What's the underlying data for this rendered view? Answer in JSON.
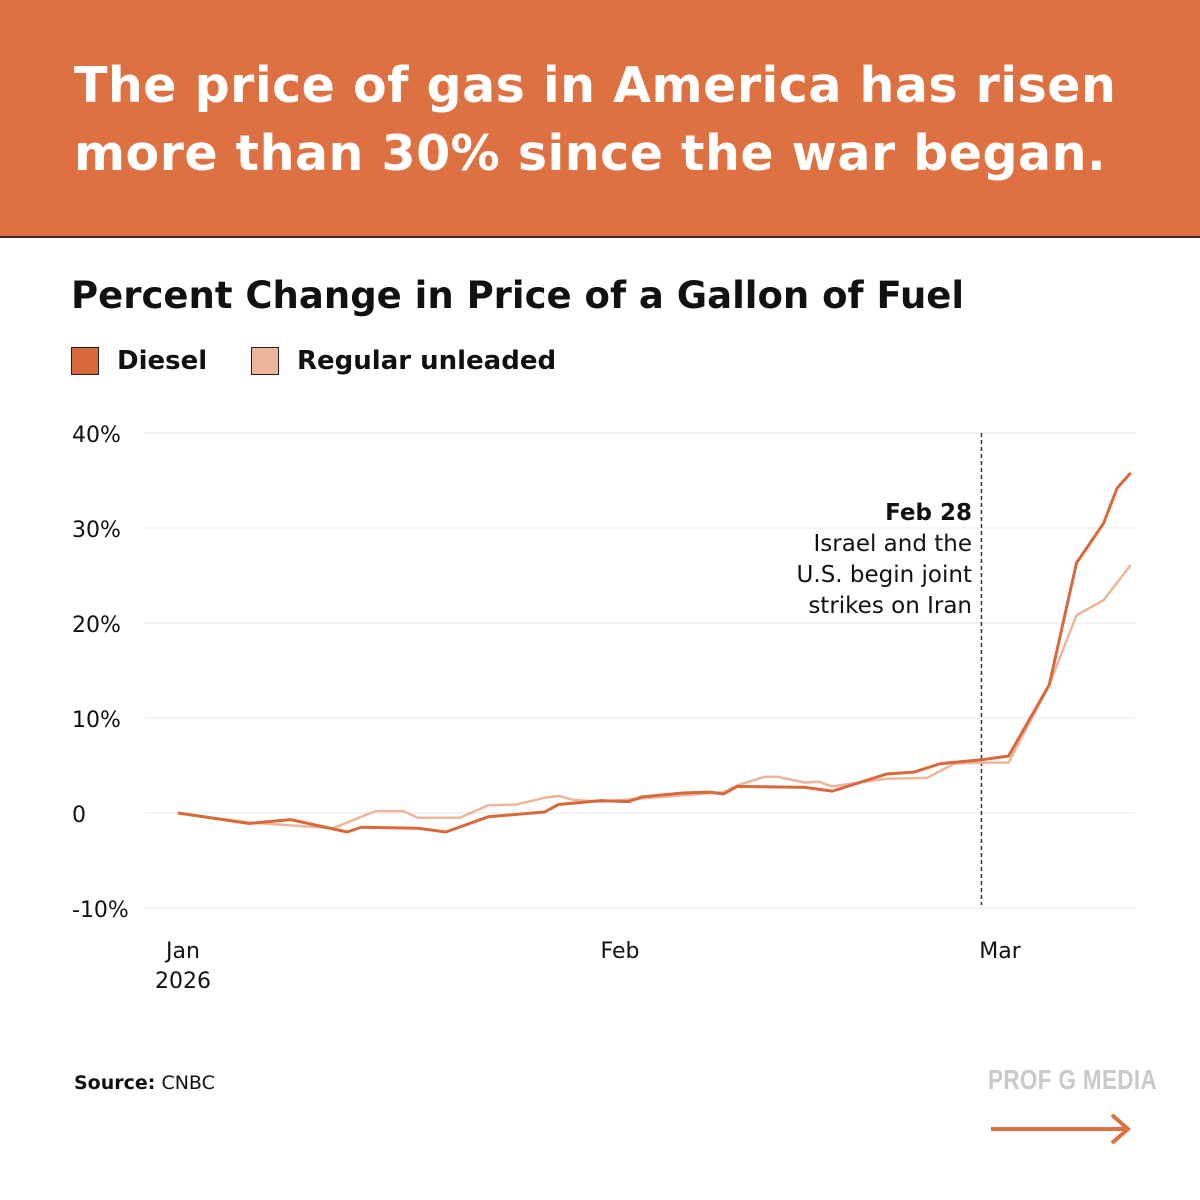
{
  "headline": "The price of gas in America has risen more than 30% since the war began.",
  "colors": {
    "header": "#DE7142",
    "diesel": "#D9683A",
    "regular": "#EDB59A",
    "grid": "#eeeeee"
  },
  "source": {
    "label": "Source:",
    "value": "CNBC"
  },
  "brand": "PROF G MEDIA",
  "brand_icon": "arrow-right-icon",
  "chart_data": {
    "type": "line",
    "title": "Percent Change in Price of a Gallon of Fuel",
    "xlabel": "",
    "ylabel": "",
    "ylim": [
      -10,
      40
    ],
    "yticks": [
      {
        "value": 40,
        "label": "40%"
      },
      {
        "value": 30,
        "label": "30%"
      },
      {
        "value": 20,
        "label": "20%"
      },
      {
        "value": 10,
        "label": "10%"
      },
      {
        "value": 0,
        "label": "0"
      },
      {
        "value": -10,
        "label": "-10%"
      }
    ],
    "xticks": [
      {
        "date": "2026-01-01",
        "label": "Jan",
        "sublabel": "2026"
      },
      {
        "date": "2026-02-01",
        "label": "Feb",
        "sublabel": ""
      },
      {
        "date": "2026-03-01",
        "label": "Mar",
        "sublabel": ""
      }
    ],
    "grid": true,
    "legend": "top-left",
    "annotation": {
      "date": "2026-02-28",
      "title": "Feb 28",
      "lines": [
        "Israel and the",
        "U.S. begin joint",
        "strikes on Iran"
      ]
    },
    "series": [
      {
        "name": "Diesel",
        "color": "#D9683A",
        "points": [
          [
            "2026-01-01",
            0.0
          ],
          [
            "2026-01-06",
            -1.1
          ],
          [
            "2026-01-09",
            -0.7
          ],
          [
            "2026-01-13",
            -2.0
          ],
          [
            "2026-01-14",
            -1.5
          ],
          [
            "2026-01-18",
            -1.6
          ],
          [
            "2026-01-20",
            -2.0
          ],
          [
            "2026-01-23",
            -0.4
          ],
          [
            "2026-01-27",
            0.1
          ],
          [
            "2026-01-28",
            0.9
          ],
          [
            "2026-01-31",
            1.3
          ],
          [
            "2026-02-02",
            1.2
          ],
          [
            "2026-02-03",
            1.7
          ],
          [
            "2026-02-06",
            2.1
          ],
          [
            "2026-02-08",
            2.2
          ],
          [
            "2026-02-09",
            2.0
          ],
          [
            "2026-02-10",
            2.8
          ],
          [
            "2026-02-15",
            2.7
          ],
          [
            "2026-02-17",
            2.3
          ],
          [
            "2026-02-21",
            4.1
          ],
          [
            "2026-02-23",
            4.3
          ],
          [
            "2026-02-25",
            5.2
          ],
          [
            "2026-02-28",
            5.6
          ],
          [
            "2026-03-02",
            6.0
          ],
          [
            "2026-03-05",
            13.5
          ],
          [
            "2026-03-07",
            26.3
          ],
          [
            "2026-03-09",
            30.5
          ],
          [
            "2026-03-10",
            34.2
          ],
          [
            "2026-03-11",
            35.8
          ]
        ]
      },
      {
        "name": "Regular unleaded",
        "color": "#EDB59A",
        "points": [
          [
            "2026-01-01",
            0.0
          ],
          [
            "2026-01-06",
            -1.0
          ],
          [
            "2026-01-12",
            -1.6
          ],
          [
            "2026-01-15",
            0.2
          ],
          [
            "2026-01-17",
            0.2
          ],
          [
            "2026-01-18",
            -0.5
          ],
          [
            "2026-01-21",
            -0.5
          ],
          [
            "2026-01-23",
            0.8
          ],
          [
            "2026-01-25",
            0.9
          ],
          [
            "2026-01-27",
            1.6
          ],
          [
            "2026-01-28",
            1.8
          ],
          [
            "2026-01-29",
            1.4
          ],
          [
            "2026-01-31",
            1.2
          ],
          [
            "2026-02-09",
            2.2
          ],
          [
            "2026-02-10",
            2.9
          ],
          [
            "2026-02-12",
            3.8
          ],
          [
            "2026-02-13",
            3.8
          ],
          [
            "2026-02-15",
            3.2
          ],
          [
            "2026-02-16",
            3.3
          ],
          [
            "2026-02-17",
            2.8
          ],
          [
            "2026-02-21",
            3.6
          ],
          [
            "2026-02-24",
            3.7
          ],
          [
            "2026-02-26",
            5.2
          ],
          [
            "2026-02-28",
            5.3
          ],
          [
            "2026-03-02",
            5.3
          ],
          [
            "2026-03-05",
            13.5
          ],
          [
            "2026-03-07",
            20.8
          ],
          [
            "2026-03-09",
            22.4
          ],
          [
            "2026-03-11",
            26.1
          ]
        ]
      }
    ]
  }
}
